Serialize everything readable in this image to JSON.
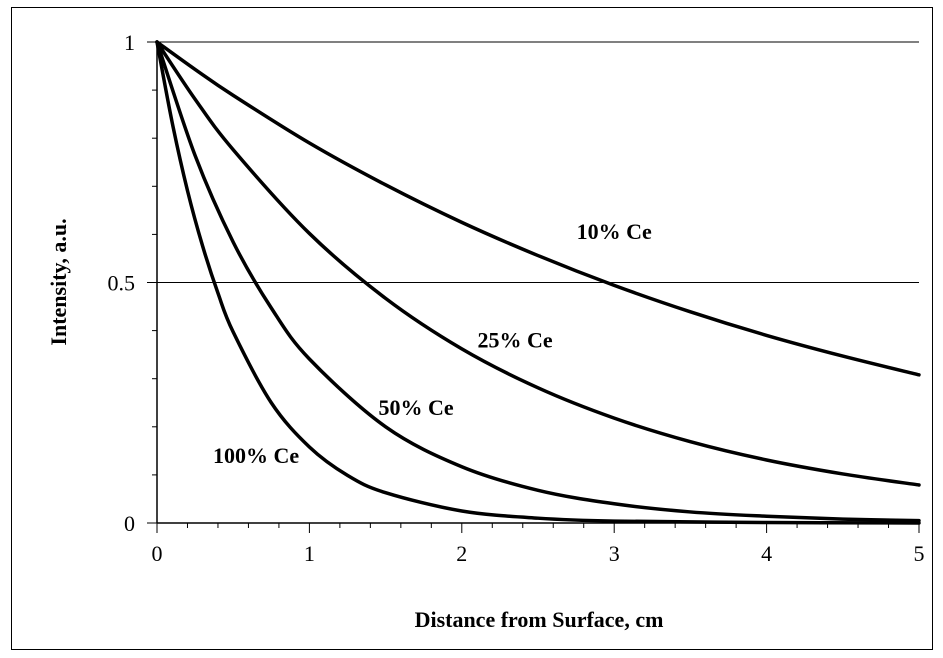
{
  "chart_data": {
    "type": "line",
    "title": "",
    "xlabel": "Distance from Surface, cm",
    "ylabel": "Intensity, a.u.",
    "xlim": [
      0,
      5
    ],
    "ylim": [
      0,
      1
    ],
    "x_ticks": [
      "0",
      "1",
      "2",
      "3",
      "4",
      "5"
    ],
    "y_ticks": [
      "0",
      "0.5",
      "1"
    ],
    "grid": "horizontal major",
    "legend": "none (inline labels)",
    "line_color": "#000000",
    "series": [
      {
        "name": "10% Ce",
        "x": [
          0,
          0.25,
          0.5,
          1,
          1.5,
          2,
          2.5,
          3,
          3.5,
          4,
          4.5,
          5
        ],
        "y": [
          1.0,
          0.943,
          0.889,
          0.79,
          0.703,
          0.625,
          0.556,
          0.494,
          0.439,
          0.39,
          0.347,
          0.308
        ]
      },
      {
        "name": "25% Ce",
        "x": [
          0,
          0.25,
          0.5,
          1,
          1.5,
          2,
          2.5,
          3,
          3.5,
          4,
          4.5,
          5
        ],
        "y": [
          1.0,
          0.881,
          0.776,
          0.602,
          0.467,
          0.362,
          0.281,
          0.218,
          0.169,
          0.131,
          0.102,
          0.079
        ]
      },
      {
        "name": "50% Ce",
        "x": [
          0,
          0.25,
          0.5,
          0.75,
          1,
          1.5,
          2,
          2.5,
          3,
          3.5,
          4,
          4.5,
          5
        ],
        "y": [
          1.0,
          0.764,
          0.584,
          0.447,
          0.341,
          0.2,
          0.117,
          0.068,
          0.04,
          0.023,
          0.014,
          0.008,
          0.005
        ]
      },
      {
        "name": "100% Ce",
        "x": [
          0,
          0.1,
          0.2,
          0.3,
          0.4,
          0.5,
          0.75,
          1,
          1.25,
          1.5,
          2,
          2.5,
          3,
          4,
          5
        ],
        "y": [
          1.0,
          0.832,
          0.691,
          0.575,
          0.478,
          0.397,
          0.25,
          0.158,
          0.099,
          0.063,
          0.025,
          0.01,
          0.004,
          0.001,
          0.0
        ]
      }
    ],
    "series_label_positions": [
      {
        "name": "10% Ce",
        "x": 3.0,
        "y": 0.59
      },
      {
        "name": "25% Ce",
        "x": 2.35,
        "y": 0.365
      },
      {
        "name": "50% Ce",
        "x": 1.7,
        "y": 0.225
      },
      {
        "name": "100% Ce",
        "x": 0.65,
        "y": 0.125
      }
    ]
  }
}
